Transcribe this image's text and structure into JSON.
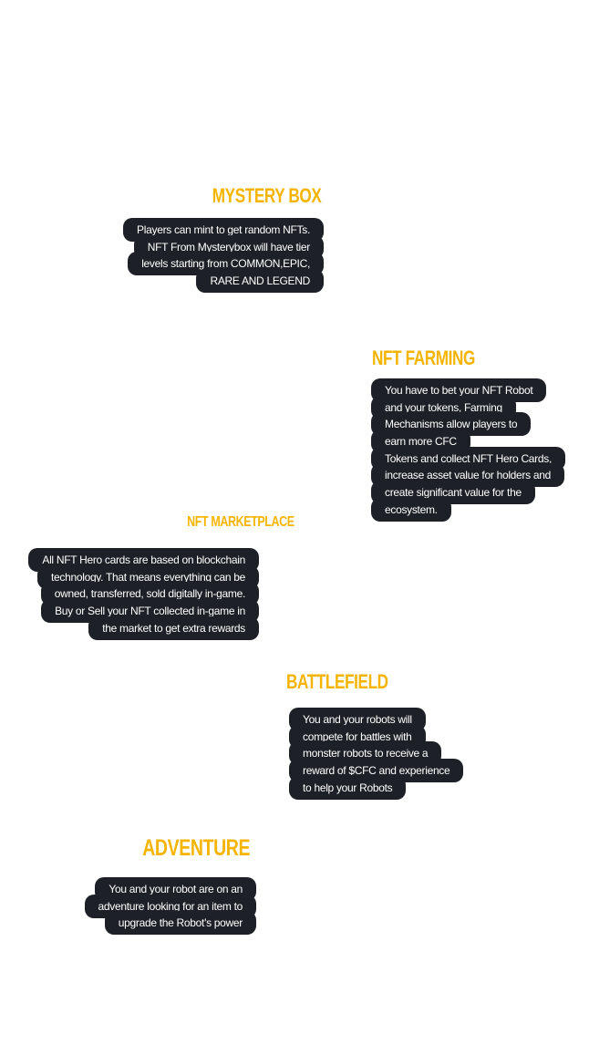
{
  "sections": [
    {
      "title": "MYSTERY BOX",
      "lines": [
        "Players can mint to get random NFTs.",
        "NFT From Mysterybox will have tier",
        "levels starting from COMMON,EPIC,",
        "RARE AND LEGEND"
      ]
    },
    {
      "title": "NFT FARMING",
      "lines": [
        "You have to bet your NFT Robot",
        "and your tokens, Farming",
        "Mechanisms allow players to",
        "earn more CFC",
        "Tokens and collect NFT Hero Cards,",
        "increase asset value for holders and",
        "create significant value for the",
        "ecosystem."
      ]
    },
    {
      "title": "NFT MARKETPLACE",
      "lines": [
        "All NFT Hero cards are based on blockchain",
        "technology. That means everything can be",
        "owned, transferred, sold digitally in-game.",
        "Buy or Sell your NFT collected in-game in",
        "the market to get extra rewards"
      ]
    },
    {
      "title": "BATTLEFIELD",
      "lines": [
        "You and your robots will",
        "compete for battles with",
        "monster robots to receive a",
        "reward of $CFC and experience",
        "to help your Robots"
      ]
    },
    {
      "title": "ADVENTURE",
      "lines": [
        "You and your robot are on an",
        "adventure looking for an item to",
        "upgrade the Robot's power"
      ]
    }
  ]
}
